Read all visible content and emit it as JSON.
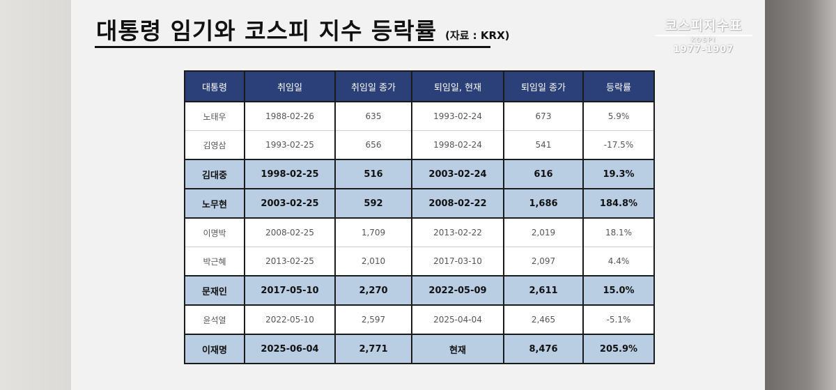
{
  "slide": {
    "title": "대통령 임기와 코스피 지수 등락률",
    "source": "(자료 : KRX)",
    "logo": {
      "main": "코스피지수표",
      "sub": "KOSPI",
      "year": "1977-1907"
    }
  },
  "table": {
    "headers": [
      "대통령",
      "취임일",
      "취임일 종가",
      "퇴임일, 현재",
      "퇴임일 종가",
      "등락률"
    ],
    "rows": [
      [
        "노태우",
        "1988-02-26",
        "635",
        "1993-02-24",
        "673",
        "5.9%"
      ],
      [
        "김영삼",
        "1993-02-25",
        "656",
        "1998-02-24",
        "541",
        "-17.5%"
      ],
      [
        "김대중",
        "1998-02-25",
        "516",
        "2003-02-24",
        "616",
        "19.3%"
      ],
      [
        "노무현",
        "2003-02-25",
        "592",
        "2008-02-22",
        "1,686",
        "184.8%"
      ],
      [
        "이명박",
        "2008-02-25",
        "1,709",
        "2013-02-22",
        "2,019",
        "18.1%"
      ],
      [
        "박근혜",
        "2013-02-25",
        "2,010",
        "2017-03-10",
        "2,097",
        "4.4%"
      ],
      [
        "문재인",
        "2017-05-10",
        "2,270",
        "2022-05-09",
        "2,611",
        "15.0%"
      ],
      [
        "윤석열",
        "2022-05-10",
        "2,597",
        "2025-04-04",
        "2,465",
        "-5.1%"
      ],
      [
        "이재명",
        "2025-06-04",
        "2,771",
        "현재",
        "8,476",
        "205.9%"
      ]
    ],
    "highlighted_rows": [
      2,
      3,
      6,
      8
    ]
  },
  "colors": {
    "header_bg": "#2b3f78",
    "highlight_bg": "#b9cde3",
    "slide_bg": "#f2f2f3"
  }
}
